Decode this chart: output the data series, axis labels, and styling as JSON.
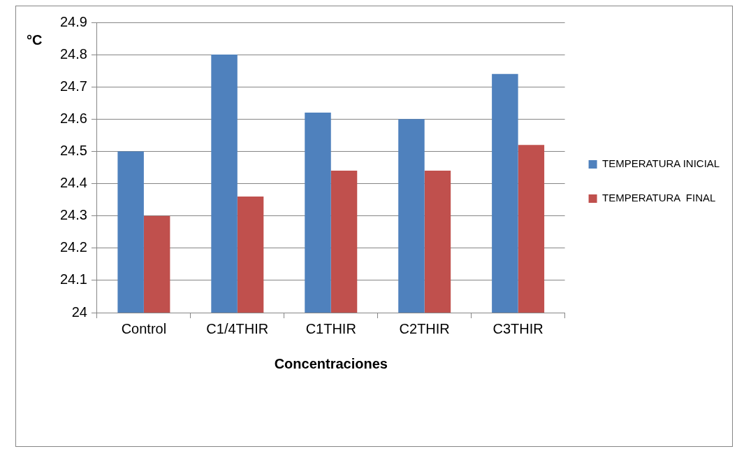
{
  "chart_data": {
    "type": "bar",
    "xlabel": "Concentraciones",
    "ylabel": "°C",
    "categories": [
      "Control",
      "C1/4THIR",
      "C1THIR",
      "C2THIR",
      "C3THIR"
    ],
    "series": [
      {
        "name": "TEMPERATURA INICIAL",
        "color": "#4f81bd",
        "values": [
          24.5,
          24.8,
          24.62,
          24.6,
          24.74
        ]
      },
      {
        "name": "TEMPERATURA  FINAL",
        "color": "#c0504d",
        "values": [
          24.3,
          24.36,
          24.44,
          24.44,
          24.52
        ]
      }
    ],
    "ylim": [
      24,
      24.9
    ],
    "yticks": [
      24,
      24.1,
      24.2,
      24.3,
      24.4,
      24.5,
      24.6,
      24.7,
      24.8,
      24.9
    ],
    "grid": "y",
    "legend": "right"
  }
}
